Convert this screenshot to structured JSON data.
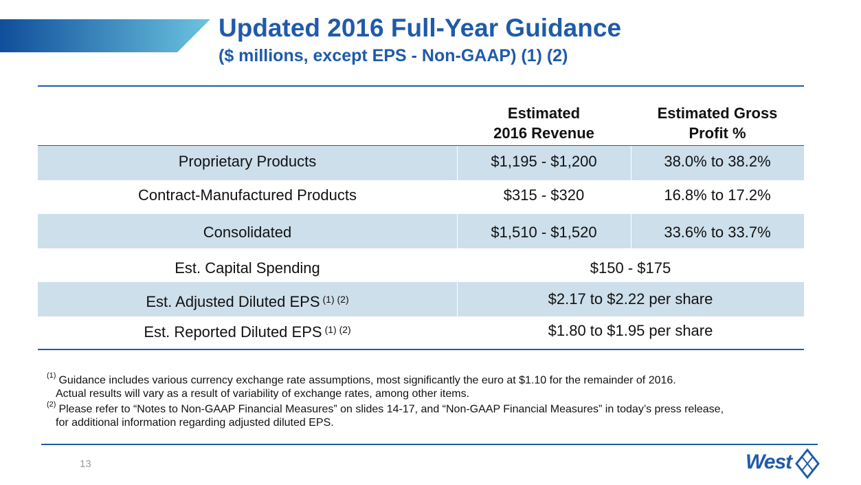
{
  "header": {
    "title": "Updated 2016 Full-Year Guidance",
    "subtitle": "($ millions, except EPS - Non-GAAP) (1) (2)"
  },
  "table": {
    "columns": [
      [
        "Estimated",
        "2016 Revenue"
      ],
      [
        "Estimated Gross",
        "Profit %"
      ]
    ],
    "segment_rows": [
      [
        "Proprietary Products",
        "$1,195 - $1,200",
        "38.0% to 38.2%"
      ],
      [
        "Contract-Manufactured Products",
        "$315 - $320",
        "16.8% to 17.2%"
      ],
      [
        "Consolidated",
        "$1,510 - $1,520",
        "33.6% to 33.7%"
      ]
    ],
    "other_rows": [
      {
        "label": "Est. Capital Spending",
        "value": "$150 - $175"
      },
      {
        "label": "Est. Adjusted Diluted EPS",
        "note": "(1) (2)",
        "value": "$2.17 to $2.22 per share"
      },
      {
        "label": "Est. Reported Diluted EPS",
        "note": "(1) (2)",
        "value": "$1.80 to $1.95 per share"
      }
    ]
  },
  "footnotes": [
    {
      "marker": "(1)",
      "lines": [
        "Guidance includes various currency exchange rate assumptions, most significantly the euro at $1.10 for the remainder of 2016.",
        "Actual results will vary as a result of variability of exchange rates, among other items."
      ]
    },
    {
      "marker": "(2)",
      "lines": [
        "Please refer to “Notes to Non-GAAP Financial Measures” on slides 14-17, and “Non-GAAP Financial Measures” in today’s press release,",
        "for additional information regarding adjusted diluted EPS."
      ]
    }
  ],
  "footer": {
    "page_number": "13",
    "logo": "West"
  }
}
